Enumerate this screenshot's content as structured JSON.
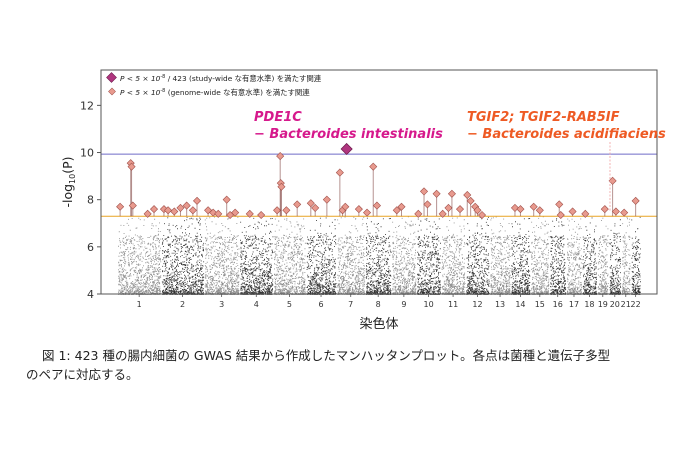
{
  "chart_data": {
    "type": "scatter",
    "xlabel": "染色体",
    "ylabel_prefix": "-log",
    "ylabel_sub": "10",
    "ylabel_suffix": "(P)",
    "ylim": [
      4,
      13.5
    ],
    "yticks": [
      4,
      6,
      8,
      10,
      12
    ],
    "chromosomes": [
      "1",
      "2",
      "3",
      "4",
      "5",
      "6",
      "7",
      "8",
      "9",
      "10",
      "11",
      "12",
      "13",
      "14",
      "15",
      "16",
      "17",
      "18",
      "19",
      "20",
      "21",
      "22"
    ],
    "thresholds": {
      "study_wide": 9.93,
      "genome_wide": 7.3,
      "study_wide_color": "#6f6bc8",
      "genome_wide_color": "#e8a323"
    },
    "legend": {
      "placement": "top-left",
      "items": [
        {
          "label_p": "P < 5 × 10",
          "label_exp": "-8",
          "label_rest": " / 423 (study-wide な有意水準) を満たす関連",
          "marker": "large-diamond",
          "color": "#b0357f"
        },
        {
          "label_p": "P < 5 × 10",
          "label_exp": "-8",
          "label_rest": " (genome-wide な有意水準) を満たす関連",
          "marker": "small-diamond",
          "color": "#e89a8e"
        }
      ]
    },
    "annotations": [
      {
        "line1": "PDE1C",
        "line2": "− Bacteroides intestinalis",
        "color": "#d6198c"
      },
      {
        "line1": "TGIF2; TGIF2-RAB5IF",
        "line2": "− Bacteroides acidifiaciens",
        "color": "#ee5a24"
      }
    ],
    "study_wide_hits": [
      {
        "chr": "7",
        "pos": 0.35,
        "y": 10.15
      }
    ],
    "genome_wide_hits": [
      {
        "chr": "1",
        "pos": 0.05,
        "y": 7.7
      },
      {
        "chr": "1",
        "pos": 0.3,
        "y": 9.55
      },
      {
        "chr": "1",
        "pos": 0.32,
        "y": 9.4
      },
      {
        "chr": "1",
        "pos": 0.35,
        "y": 7.75
      },
      {
        "chr": "1",
        "pos": 0.7,
        "y": 7.4
      },
      {
        "chr": "1",
        "pos": 0.85,
        "y": 7.6
      },
      {
        "chr": "2",
        "pos": 0.05,
        "y": 7.6
      },
      {
        "chr": "2",
        "pos": 0.15,
        "y": 7.55
      },
      {
        "chr": "2",
        "pos": 0.3,
        "y": 7.5
      },
      {
        "chr": "2",
        "pos": 0.45,
        "y": 7.65
      },
      {
        "chr": "2",
        "pos": 0.6,
        "y": 7.75
      },
      {
        "chr": "2",
        "pos": 0.75,
        "y": 7.55
      },
      {
        "chr": "2",
        "pos": 0.85,
        "y": 7.95
      },
      {
        "chr": "3",
        "pos": 0.1,
        "y": 7.55
      },
      {
        "chr": "3",
        "pos": 0.25,
        "y": 7.45
      },
      {
        "chr": "3",
        "pos": 0.4,
        "y": 7.4
      },
      {
        "chr": "3",
        "pos": 0.65,
        "y": 8.0
      },
      {
        "chr": "3",
        "pos": 0.75,
        "y": 7.35
      },
      {
        "chr": "3",
        "pos": 0.9,
        "y": 7.45
      },
      {
        "chr": "4",
        "pos": 0.3,
        "y": 7.4
      },
      {
        "chr": "4",
        "pos": 0.65,
        "y": 7.35
      },
      {
        "chr": "5",
        "pos": 0.1,
        "y": 7.55
      },
      {
        "chr": "5",
        "pos": 0.2,
        "y": 9.85
      },
      {
        "chr": "5",
        "pos": 0.22,
        "y": 8.7
      },
      {
        "chr": "5",
        "pos": 0.24,
        "y": 8.55
      },
      {
        "chr": "5",
        "pos": 0.4,
        "y": 7.55
      },
      {
        "chr": "5",
        "pos": 0.75,
        "y": 7.8
      },
      {
        "chr": "6",
        "pos": 0.15,
        "y": 7.85
      },
      {
        "chr": "6",
        "pos": 0.3,
        "y": 7.65
      },
      {
        "chr": "6",
        "pos": 0.7,
        "y": 8.0
      },
      {
        "chr": "7",
        "pos": 0.1,
        "y": 9.15
      },
      {
        "chr": "7",
        "pos": 0.2,
        "y": 7.55
      },
      {
        "chr": "7",
        "pos": 0.3,
        "y": 7.7
      },
      {
        "chr": "7",
        "pos": 0.8,
        "y": 7.6
      },
      {
        "chr": "8",
        "pos": 0.05,
        "y": 7.45
      },
      {
        "chr": "8",
        "pos": 0.3,
        "y": 9.4
      },
      {
        "chr": "8",
        "pos": 0.45,
        "y": 7.75
      },
      {
        "chr": "9",
        "pos": 0.2,
        "y": 7.55
      },
      {
        "chr": "9",
        "pos": 0.4,
        "y": 7.7
      },
      {
        "chr": "10",
        "pos": 0.05,
        "y": 7.4
      },
      {
        "chr": "10",
        "pos": 0.3,
        "y": 8.35
      },
      {
        "chr": "10",
        "pos": 0.45,
        "y": 7.8
      },
      {
        "chr": "10",
        "pos": 0.85,
        "y": 8.25
      },
      {
        "chr": "11",
        "pos": 0.05,
        "y": 7.4
      },
      {
        "chr": "11",
        "pos": 0.3,
        "y": 7.65
      },
      {
        "chr": "11",
        "pos": 0.45,
        "y": 8.25
      },
      {
        "chr": "11",
        "pos": 0.8,
        "y": 7.6
      },
      {
        "chr": "12",
        "pos": 0.05,
        "y": 8.2
      },
      {
        "chr": "12",
        "pos": 0.2,
        "y": 7.95
      },
      {
        "chr": "12",
        "pos": 0.4,
        "y": 7.7
      },
      {
        "chr": "12",
        "pos": 0.5,
        "y": 7.55
      },
      {
        "chr": "12",
        "pos": 0.7,
        "y": 7.35
      },
      {
        "chr": "14",
        "pos": 0.2,
        "y": 7.65
      },
      {
        "chr": "14",
        "pos": 0.5,
        "y": 7.6
      },
      {
        "chr": "15",
        "pos": 0.15,
        "y": 7.7
      },
      {
        "chr": "15",
        "pos": 0.5,
        "y": 7.55
      },
      {
        "chr": "16",
        "pos": 0.6,
        "y": 7.8
      },
      {
        "chr": "16",
        "pos": 0.7,
        "y": 7.35
      },
      {
        "chr": "17",
        "pos": 0.4,
        "y": 7.5
      },
      {
        "chr": "18",
        "pos": 0.2,
        "y": 7.4
      },
      {
        "chr": "19",
        "pos": 0.7,
        "y": 7.6
      },
      {
        "chr": "20",
        "pos": 0.3,
        "y": 8.8
      },
      {
        "chr": "20",
        "pos": 0.6,
        "y": 7.5
      },
      {
        "chr": "21",
        "pos": 0.3,
        "y": 7.45
      },
      {
        "chr": "22",
        "pos": 0.5,
        "y": 7.95
      }
    ]
  },
  "caption": {
    "line1": "図 1: 423 種の腸内細菌の GWAS 結果から作成したマンハッタンプロット。各点は菌種と遺伝子多型",
    "line2": "のペアに対応する。"
  }
}
